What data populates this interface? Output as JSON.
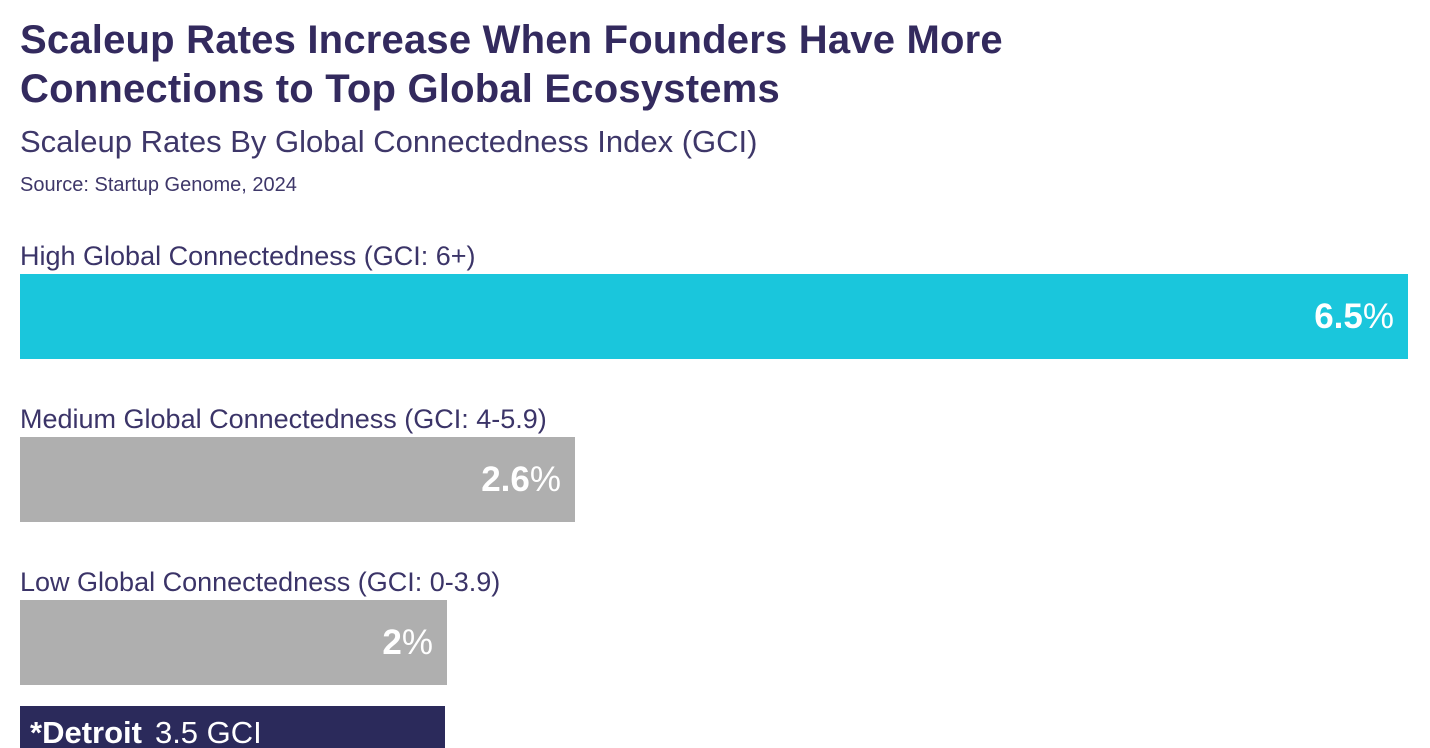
{
  "header": {
    "title": "Scaleup Rates Increase When Founders Have More Connections to Top Global Ecosystems",
    "title_line1": "Scaleup Rates Increase When Founders Have More",
    "title_line2": "Connections to Top Global Ecosystems",
    "subtitle": "Scaleup Rates By Global Connectedness Index (GCI)",
    "source": "Source: Startup Genome, 2024"
  },
  "colors": {
    "background": "#FFFFFF",
    "title_text": "#332A5E",
    "subtitle_text": "#3E3769",
    "label_text": "#3B3468",
    "bar_cyan": "#1AC6DC",
    "bar_gray": "#AFAFAF",
    "bar_navy": "#2B2A5B",
    "bar_value_text": "#FFFFFF"
  },
  "chart_data": {
    "type": "bar",
    "orientation": "horizontal",
    "title": "Scaleup Rates Increase When Founders Have More Connections to Top Global Ecosystems",
    "subtitle": "Scaleup Rates By Global Connectedness Index (GCI)",
    "source": "Source: Startup Genome, 2024",
    "xlim": [
      0,
      6.5
    ],
    "grid": false,
    "legend": false,
    "categories": [
      "High Global Connectedness (GCI: 6+)",
      "Medium Global Connectedness (GCI: 4-5.9)",
      "Low Global Connectedness (GCI: 0-3.9)"
    ],
    "values": [
      6.5,
      2.6,
      2
    ],
    "bars": [
      {
        "label": "High Global Connectedness (GCI: 6+)",
        "value": 6.5,
        "display_num": "6.5",
        "display_suffix": "%",
        "color": "#1AC6DC"
      },
      {
        "label": "Medium Global Connectedness (GCI: 4-5.9)",
        "value": 2.6,
        "display_num": "2.6",
        "display_suffix": "%",
        "color": "#AFAFAF"
      },
      {
        "label": "Low Global Connectedness (GCI: 0-3.9)",
        "value": 2,
        "display_num": "2",
        "display_suffix": "%",
        "color": "#AFAFAF"
      }
    ],
    "annotation": {
      "label": "*Detroit",
      "value_text": "3.5 GCI",
      "gci": 3.5,
      "color": "#2B2A5B"
    }
  }
}
